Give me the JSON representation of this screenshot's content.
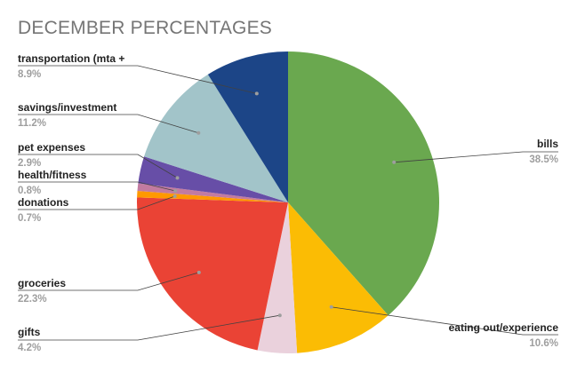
{
  "chart_data": {
    "type": "pie",
    "title": "DECEMBER PERCENTAGES",
    "start_angle_deg": 0,
    "direction": "clockwise",
    "slices": [
      {
        "label": "bills",
        "value": 38.5,
        "value_label": "38.5%",
        "color": "#6aa84f"
      },
      {
        "label": "eating out/experience",
        "value": 10.6,
        "value_label": "10.6%",
        "color": "#fbbc04"
      },
      {
        "label": "gifts",
        "value": 4.2,
        "value_label": "4.2%",
        "color": "#ead1dc"
      },
      {
        "label": "groceries",
        "value": 22.3,
        "value_label": "22.3%",
        "color": "#ea4335"
      },
      {
        "label": "donations",
        "value": 0.7,
        "value_label": "0.7%",
        "color": "#ff9900"
      },
      {
        "label": "health/fitness",
        "value": 0.8,
        "value_label": "0.8%",
        "color": "#c27ba0"
      },
      {
        "label": "pet expenses",
        "value": 2.9,
        "value_label": "2.9%",
        "color": "#674ea7"
      },
      {
        "label": "savings/investment",
        "value": 11.2,
        "value_label": "11.2%",
        "color": "#a2c4c9"
      },
      {
        "label": "transportation (mta +",
        "value": 8.9,
        "value_label": "8.9%",
        "color": "#1c4587"
      }
    ]
  }
}
